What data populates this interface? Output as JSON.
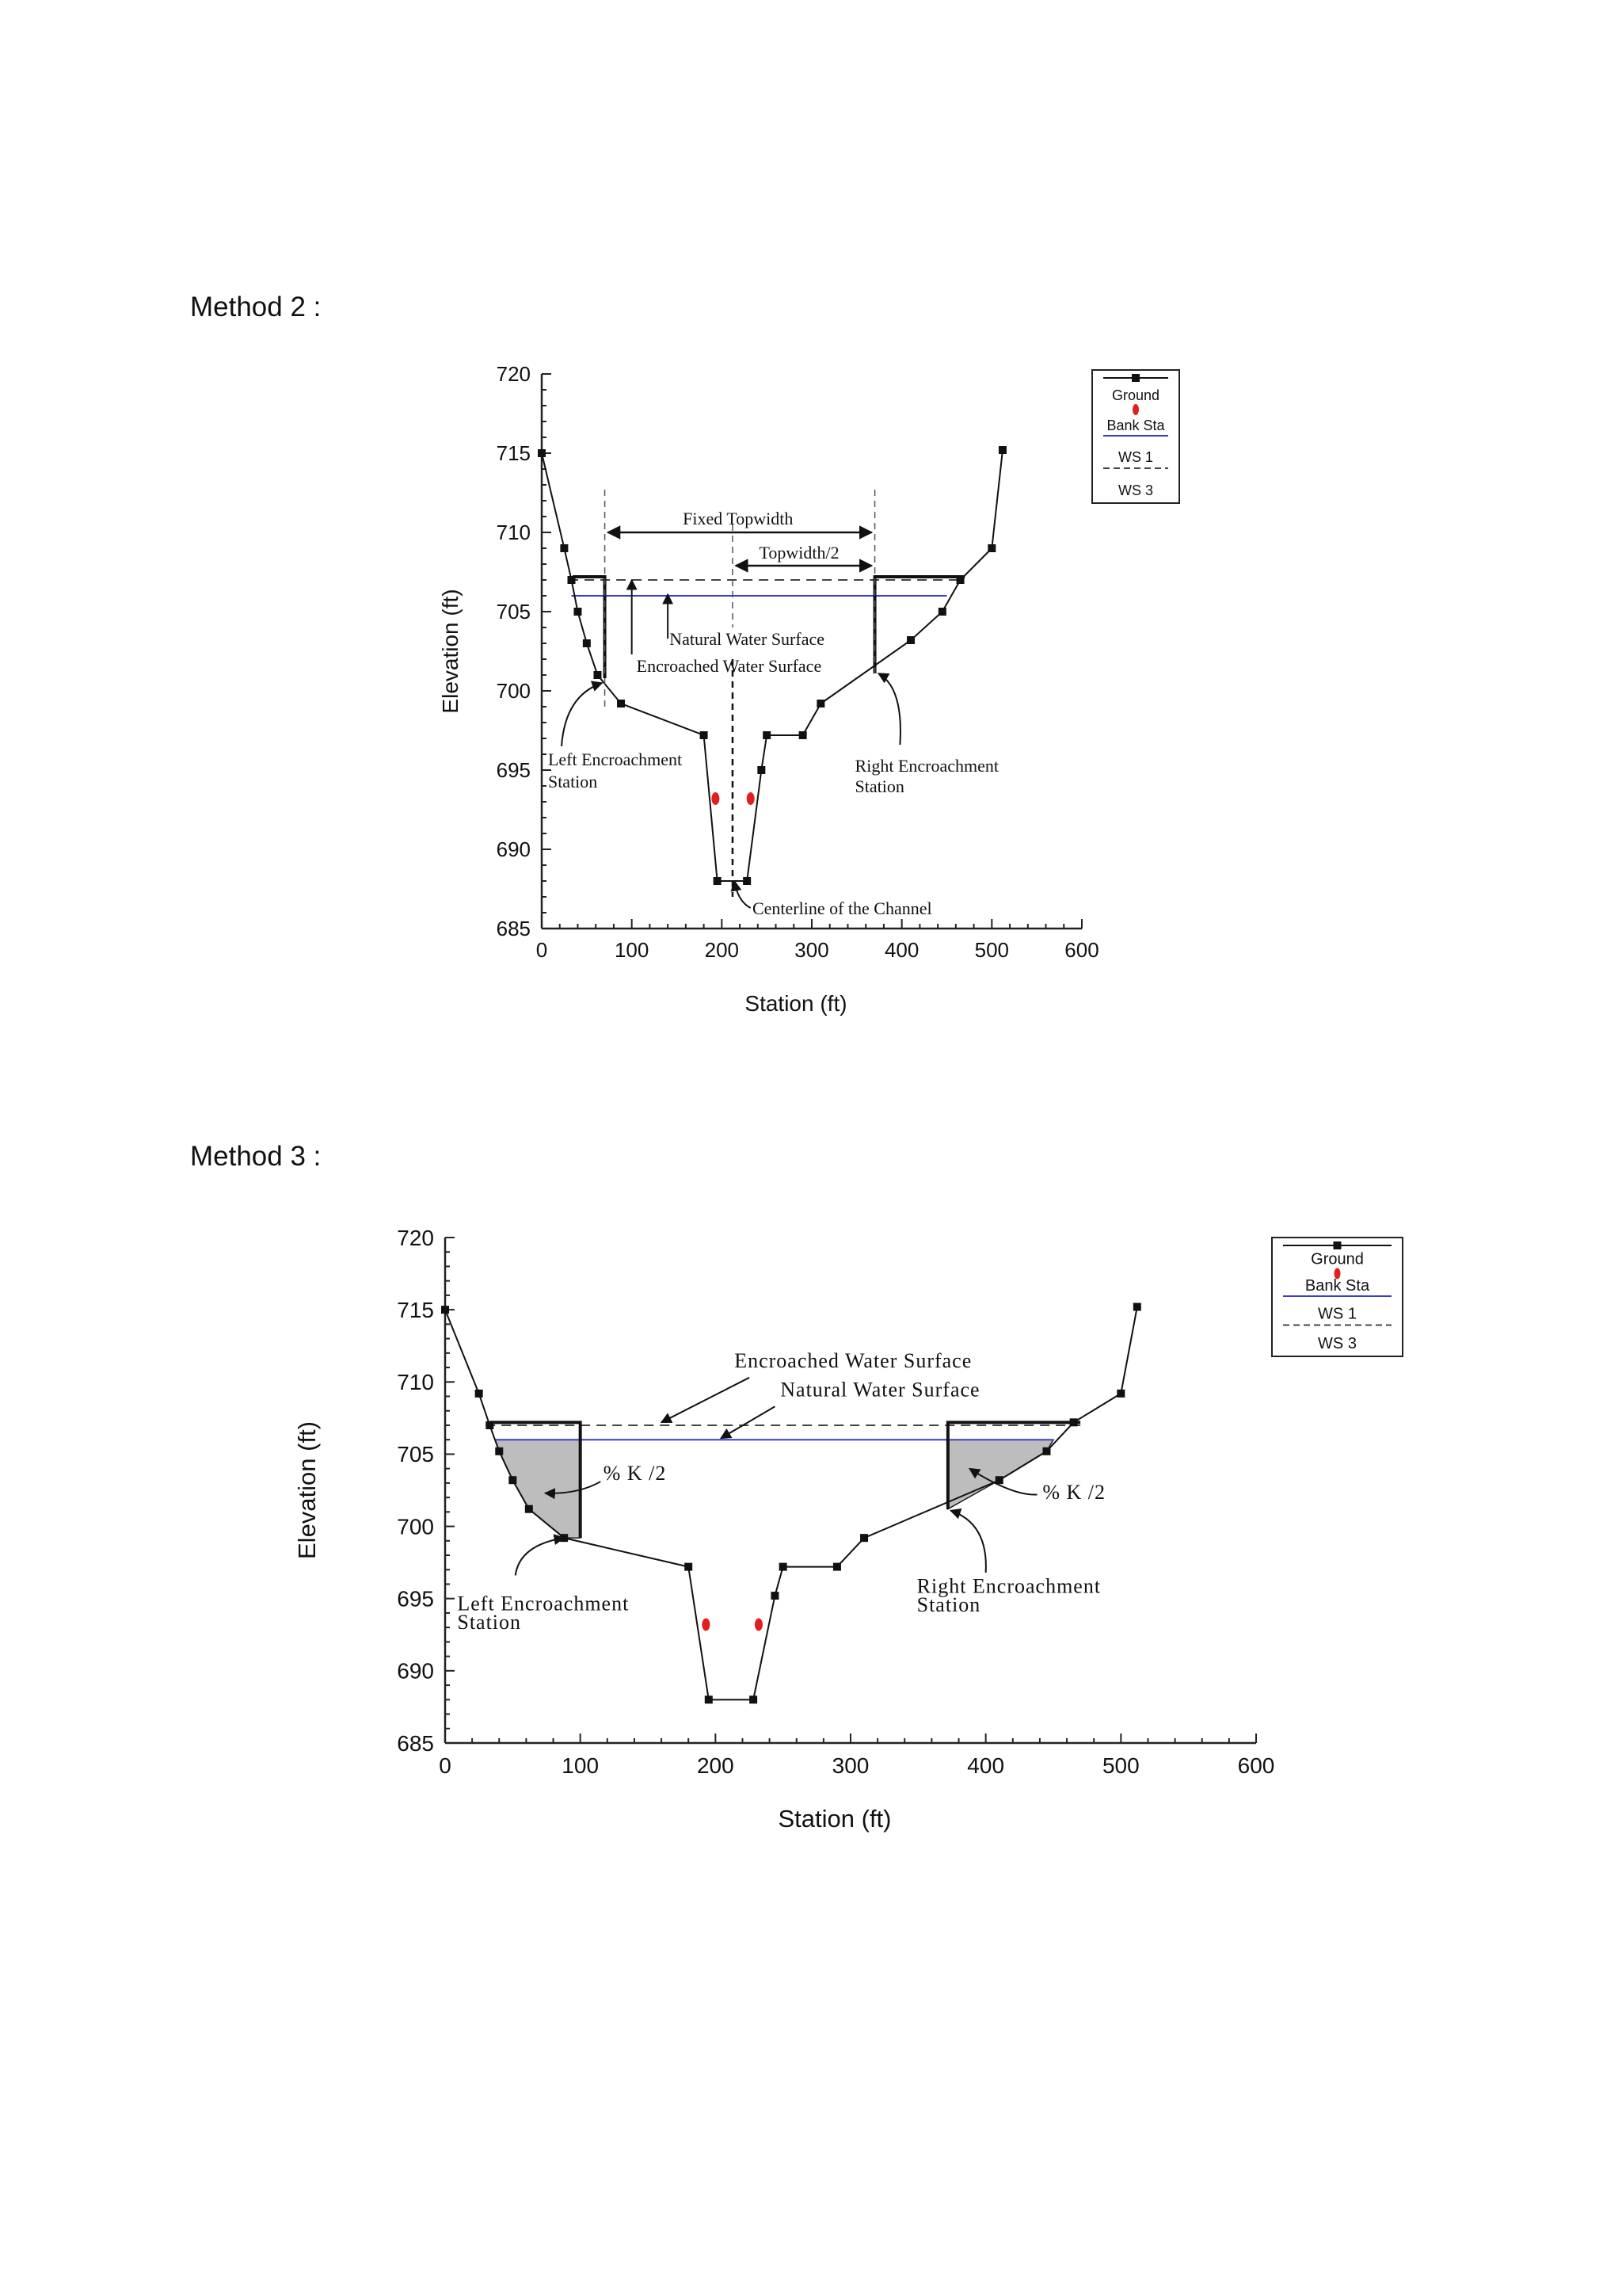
{
  "page": {
    "method2_label": "Method 2 :",
    "method3_label": "Method 3 :"
  },
  "legend_labels": [
    "Ground",
    "Bank Sta",
    "WS 1",
    "WS 3"
  ],
  "colors": {
    "ground": "#111111",
    "bank": "#e0201c",
    "ws1": "#3a3ad0",
    "ws3": "#444444",
    "shade": "#bdbdbd"
  },
  "chart_data": [
    {
      "type": "line",
      "title": "",
      "xlabel": "Station (ft)",
      "ylabel": "Elevation (ft)",
      "xlim": [
        0,
        600
      ],
      "ylim": [
        685,
        720
      ],
      "x_ticks": [
        0,
        100,
        200,
        300,
        400,
        500,
        600
      ],
      "y_ticks": [
        685,
        690,
        695,
        700,
        705,
        710,
        715,
        720
      ],
      "legend": [
        "Ground",
        "Bank Sta",
        "WS 1",
        "WS 3"
      ],
      "legend_position": "top-right",
      "ground": [
        [
          0,
          715
        ],
        [
          25,
          709
        ],
        [
          33,
          707
        ],
        [
          40,
          705
        ],
        [
          50,
          703
        ],
        [
          62,
          701
        ],
        [
          88,
          699.2
        ],
        [
          180,
          697.2
        ],
        [
          195,
          688
        ],
        [
          228,
          688
        ],
        [
          244,
          695
        ],
        [
          250,
          697.2
        ],
        [
          290,
          697.2
        ],
        [
          310,
          699.2
        ],
        [
          410,
          703.2
        ],
        [
          445,
          705
        ],
        [
          465,
          707
        ],
        [
          500,
          709
        ],
        [
          512,
          715.2
        ]
      ],
      "bank_stations": [
        [
          193,
          693.2
        ],
        [
          232,
          693.2
        ]
      ],
      "ws1": {
        "elevation": 706,
        "x": [
          33,
          450
        ]
      },
      "ws3": {
        "elevation": 707,
        "x": [
          30,
          470
        ]
      },
      "encroachment": {
        "left": [
          70,
          700.8
        ],
        "right": [
          370,
          701.1
        ],
        "top": 707.2
      },
      "annotations": {
        "fixed_topwidth": "Fixed Topwidth",
        "topwidth_half": "Topwidth/2",
        "natural_ws": "Natural Water Surface",
        "encroached_ws": "Encroached Water Surface",
        "left_station": [
          "Left Encroachment",
          "Station"
        ],
        "right_station": [
          "Right Encroachment",
          "Station"
        ],
        "centerline": "Centerline of the Channel"
      }
    },
    {
      "type": "line",
      "title": "",
      "xlabel": "Station (ft)",
      "ylabel": "Elevation (ft)",
      "xlim": [
        0,
        600
      ],
      "ylim": [
        685,
        720
      ],
      "x_ticks": [
        0,
        100,
        200,
        300,
        400,
        500,
        600
      ],
      "y_ticks": [
        685,
        690,
        695,
        700,
        705,
        710,
        715,
        720
      ],
      "legend": [
        "Ground",
        "Bank Sta",
        "WS 1",
        "WS 3"
      ],
      "legend_position": "top-right",
      "ground": [
        [
          0,
          715
        ],
        [
          25,
          709.2
        ],
        [
          33,
          707
        ],
        [
          40,
          705.2
        ],
        [
          50,
          703.2
        ],
        [
          62,
          701.2
        ],
        [
          88,
          699.2
        ],
        [
          180,
          697.2
        ],
        [
          195,
          688
        ],
        [
          228,
          688
        ],
        [
          244,
          695.2
        ],
        [
          250,
          697.2
        ],
        [
          290,
          697.2
        ],
        [
          310,
          699.2
        ],
        [
          410,
          703.2
        ],
        [
          445,
          705.2
        ],
        [
          465,
          707.2
        ],
        [
          500,
          709.2
        ],
        [
          512,
          715.2
        ]
      ],
      "bank_stations": [
        [
          193,
          693.2
        ],
        [
          232,
          693.2
        ]
      ],
      "ws1": {
        "elevation": 706,
        "x": [
          37,
          450
        ]
      },
      "ws3": {
        "elevation": 707,
        "x": [
          30,
          470
        ]
      },
      "encroachment": {
        "left": [
          100,
          699.2
        ],
        "right": [
          372,
          701.2
        ],
        "top": 707.2
      },
      "shaded_left": [
        [
          37,
          706
        ],
        [
          100,
          706
        ],
        [
          100,
          699.2
        ],
        [
          88,
          699.2
        ],
        [
          62,
          701.2
        ],
        [
          50,
          703.2
        ],
        [
          40,
          705.2
        ]
      ],
      "shaded_right": [
        [
          372,
          706
        ],
        [
          450,
          706
        ],
        [
          445,
          705.2
        ],
        [
          410,
          703.2
        ],
        [
          372,
          701.2
        ]
      ],
      "annotations": {
        "encroached_ws": "Encroached Water Surface",
        "natural_ws": "Natural Water Surface",
        "pct_left": "% K /2",
        "pct_right": "% K /2",
        "left_station": [
          "Left Encroachment",
          "Station"
        ],
        "right_station": [
          "Right Encroachment",
          "Station"
        ]
      }
    }
  ]
}
